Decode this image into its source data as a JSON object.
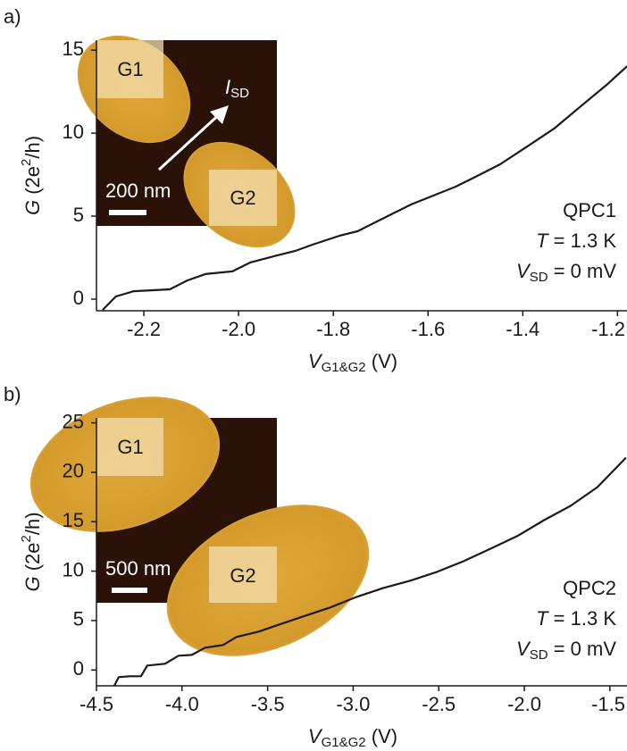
{
  "chart_data": [
    {
      "type": "line",
      "panel_label": "a)",
      "xlabel": {
        "symbol": "V",
        "subscript": "G1&G2",
        "unit": "(V)"
      },
      "ylabel": {
        "symbol": "G",
        "unit_a": "(2e",
        "unit_sup": "2",
        "unit_b": "/h)"
      },
      "xlim": [
        -2.3,
        -1.18
      ],
      "ylim": [
        -0.7,
        15.6
      ],
      "xticks": [
        -2.2,
        {
          "value": -2,
          "label": "-2.0"
        },
        -1.8,
        -1.6,
        -1.4,
        -1.2
      ],
      "yticks": [
        0,
        5,
        10,
        15
      ],
      "series": [
        {
          "color": "#1a1a1a",
          "x": [
            -2.287,
            -2.259,
            -2.221,
            -2.145,
            -2.108,
            -2.07,
            -2.013,
            -1.976,
            -1.919,
            -1.881,
            -1.844,
            -1.787,
            -1.749,
            -1.693,
            -1.636,
            -1.58,
            -1.542,
            -1.504,
            -1.448,
            -1.391,
            -1.334,
            -1.278,
            -1.221,
            -1.18
          ],
          "values": [
            -0.65,
            0.16,
            0.48,
            0.59,
            1.13,
            1.51,
            1.67,
            2.2,
            2.63,
            2.9,
            3.28,
            3.82,
            4.09,
            4.89,
            5.7,
            6.34,
            6.77,
            7.31,
            8.12,
            9.19,
            10.27,
            11.61,
            12.96,
            14.03
          ]
        }
      ],
      "inset": {
        "gate1": "G1",
        "gate2": "G2",
        "scale": "200 nm",
        "current_symbol": "I",
        "current_sub": "SD"
      },
      "annotation": {
        "device": "QPC1",
        "t_symbol": "T",
        "t_text": " = 1.3 K",
        "v_symbol": "V",
        "v_sub": "SD",
        "v_text": " = 0 mV"
      }
    },
    {
      "type": "line",
      "panel_label": "b)",
      "xlabel": {
        "symbol": "V",
        "subscript": "G1&G2",
        "unit": "(V)"
      },
      "ylabel": {
        "symbol": "G",
        "unit_a": "(2e",
        "unit_sup": "2",
        "unit_b": "/h)"
      },
      "xlim": [
        -4.5,
        -1.4
      ],
      "ylim": [
        -1.6,
        25.5
      ],
      "xticks": [
        -4.5,
        {
          "value": -4,
          "label": "-4.0"
        },
        -3.5,
        {
          "value": -3,
          "label": "-3.0"
        },
        -2.5,
        {
          "value": -2,
          "label": "-2.0"
        },
        -1.5
      ],
      "yticks": [
        0,
        5,
        10,
        15,
        20,
        25
      ],
      "series": [
        {
          "color": "#1a1a1a",
          "x": [
            -4.396,
            -4.37,
            -4.307,
            -4.24,
            -4.203,
            -4.099,
            -4.021,
            -3.943,
            -3.865,
            -3.76,
            -3.682,
            -3.552,
            -3.448,
            -3.292,
            -3.135,
            -2.979,
            -2.823,
            -2.667,
            -2.51,
            -2.354,
            -2.198,
            -2.042,
            -1.885,
            -1.729,
            -1.573,
            -1.406
          ],
          "values": [
            -1.6,
            -0.72,
            -0.63,
            -0.63,
            0.45,
            0.63,
            1.44,
            1.53,
            2.26,
            2.53,
            3.34,
            3.88,
            4.51,
            5.42,
            6.32,
            7.4,
            8.3,
            9.03,
            9.93,
            11.01,
            12.27,
            13.54,
            15.16,
            16.61,
            18.5,
            21.48
          ]
        }
      ],
      "inset": {
        "gate1": "G1",
        "gate2": "G2",
        "scale": "500 nm"
      },
      "annotation": {
        "device": "QPC2",
        "t_symbol": "T",
        "t_text": " = 1.3 K",
        "v_symbol": "V",
        "v_sub": "SD",
        "v_text": " = 0 mV"
      }
    }
  ]
}
